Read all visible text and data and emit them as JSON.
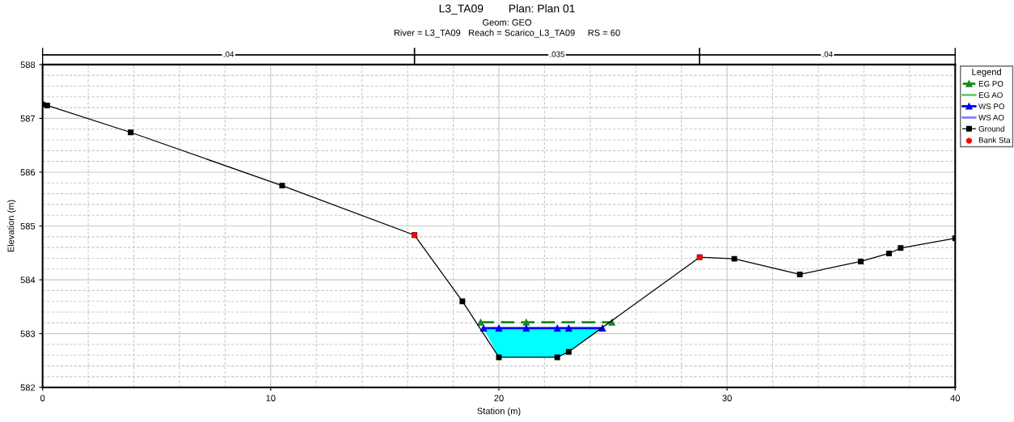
{
  "chart_data": {
    "type": "line",
    "title": "L3_TA09        Plan: Plan 01",
    "subtitle": "Geom: GEO\nRiver = L3_TA09   Reach = Scarico_L3_TA09     RS = 60",
    "xlabel": "Station (m)",
    "ylabel": "Elevation (m)",
    "legend_title": "Legend",
    "annotations": [
      ".04",
      ".035",
      ".04"
    ],
    "xlim": [
      0,
      40
    ],
    "xticks": [
      0,
      10,
      20,
      30,
      40
    ],
    "ylim": [
      582,
      588
    ],
    "yticks": [
      582,
      583,
      584,
      585,
      586,
      587,
      588
    ],
    "grid": true,
    "legend": "top right",
    "series": [
      {
        "name": "EG PO",
        "color": "#1a8a1a",
        "line_style": "dashed",
        "marker": "triangle",
        "x": [
          19.2,
          21.2,
          24.95
        ],
        "values": [
          583.21,
          583.21,
          583.21
        ]
      },
      {
        "name": "EG AO",
        "color": "#66cc66"
      },
      {
        "name": "WS PO",
        "type": "line",
        "color": "#0000ff",
        "marker": "triangle",
        "x": [
          19.33,
          20,
          21.2,
          22.56,
          23.06,
          24.54
        ],
        "values": [
          583.1,
          583.1,
          583.1,
          583.1,
          583.1,
          583.1
        ],
        "lower": [
          583.1,
          582.56,
          582.56,
          582.56,
          582.66,
          583.1
        ],
        "upper": [
          583.1,
          583.1,
          583.1,
          583.1,
          583.1,
          583.1
        ]
      },
      {
        "name": "WS AO",
        "color": "#8080ff"
      },
      {
        "name": "Ground",
        "color": "#000000",
        "marker": "square",
        "x": [
          0,
          0.2,
          3.86,
          10.5,
          16.3,
          18.4,
          20,
          22.56,
          23.06,
          28.8,
          30.32,
          33.19,
          35.86,
          37.1,
          37.61,
          40
        ],
        "values": [
          587.26,
          587.24,
          586.74,
          585.75,
          584.83,
          583.6,
          582.56,
          582.56,
          582.66,
          584.42,
          584.39,
          584.1,
          584.34,
          584.49,
          584.59,
          584.77
        ]
      },
      {
        "name": "Bank Sta",
        "type": "scatter",
        "color": "#ff0000",
        "marker": "circle",
        "x": [
          16.3,
          28.8
        ],
        "values": [
          584.83,
          584.42
        ]
      }
    ]
  }
}
